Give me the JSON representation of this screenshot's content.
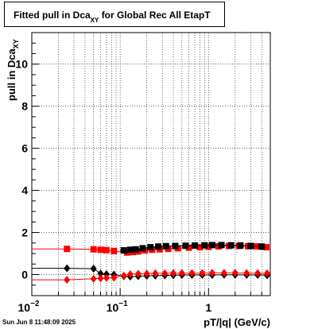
{
  "chart_data": {
    "type": "scatter",
    "title_main": "Fitted pull in Dca",
    "title_sub": "XY",
    "title_rest": "for Global Rec All EtapT",
    "xlabel": "pT/|q| (GeV/c)",
    "ylabel_main": "pull in Dca",
    "ylabel_sub": "XY",
    "x_scale": "log",
    "xlim": [
      0.01,
      5.0
    ],
    "ylim": [
      -1.0,
      11.5
    ],
    "grid": true,
    "x_tick_labels": [
      {
        "v": 0.01,
        "base": "10",
        "exp": "−2"
      },
      {
        "v": 0.1,
        "base": "10",
        "exp": "−1"
      },
      {
        "v": 1,
        "base": "1",
        "exp": ""
      }
    ],
    "y_tick_labels": [
      "0",
      "2",
      "4",
      "6",
      "8",
      "10"
    ],
    "y_ticks": [
      0,
      2,
      4,
      6,
      8,
      10
    ],
    "series": [
      {
        "marker": "square",
        "color": "#ff0000",
        "start": 0.01,
        "points": [
          [
            0.025,
            1.22
          ],
          [
            0.05,
            1.2
          ],
          [
            0.06,
            1.18
          ],
          [
            0.07,
            1.16
          ],
          [
            0.085,
            1.12
          ],
          [
            0.12,
            1.05
          ],
          [
            0.14,
            1.07
          ],
          [
            0.16,
            1.1
          ],
          [
            0.19,
            1.15
          ],
          [
            0.23,
            1.18
          ],
          [
            0.28,
            1.2
          ],
          [
            0.35,
            1.22
          ],
          [
            0.45,
            1.25
          ],
          [
            0.6,
            1.28
          ],
          [
            0.8,
            1.3
          ],
          [
            1.0,
            1.32
          ],
          [
            1.3,
            1.34
          ],
          [
            1.7,
            1.36
          ],
          [
            2.2,
            1.36
          ],
          [
            2.8,
            1.35
          ],
          [
            3.5,
            1.34
          ],
          [
            4.5,
            1.3
          ]
        ]
      },
      {
        "marker": "square",
        "color": "#000000",
        "start": 0.1,
        "points": [
          [
            0.11,
            1.15
          ],
          [
            0.13,
            1.18
          ],
          [
            0.15,
            1.2
          ],
          [
            0.18,
            1.25
          ],
          [
            0.22,
            1.3
          ],
          [
            0.27,
            1.33
          ],
          [
            0.33,
            1.35
          ],
          [
            0.42,
            1.36
          ],
          [
            0.55,
            1.37
          ],
          [
            0.7,
            1.38
          ],
          [
            0.9,
            1.39
          ],
          [
            1.1,
            1.4
          ],
          [
            1.4,
            1.4
          ],
          [
            1.8,
            1.39
          ],
          [
            2.3,
            1.38
          ],
          [
            3.0,
            1.36
          ],
          [
            4.0,
            1.33
          ]
        ]
      },
      {
        "marker": "diamond",
        "color": "#000000",
        "start": 0.01,
        "points": [
          [
            0.025,
            0.3
          ],
          [
            0.05,
            0.28
          ],
          [
            0.06,
            0.05
          ],
          [
            0.07,
            0.02
          ],
          [
            0.085,
            0.0
          ],
          [
            0.11,
            -0.08
          ],
          [
            0.13,
            -0.1
          ],
          [
            0.16,
            -0.08
          ],
          [
            0.2,
            -0.06
          ],
          [
            0.25,
            -0.05
          ],
          [
            0.32,
            -0.04
          ],
          [
            0.4,
            -0.03
          ],
          [
            0.5,
            -0.02
          ],
          [
            0.65,
            -0.02
          ],
          [
            0.85,
            -0.02
          ],
          [
            1.1,
            -0.02
          ],
          [
            1.5,
            -0.01
          ],
          [
            2.0,
            -0.01
          ],
          [
            2.7,
            -0.02
          ],
          [
            3.6,
            -0.02
          ],
          [
            4.6,
            -0.03
          ]
        ]
      },
      {
        "marker": "diamond",
        "color": "#ff0000",
        "start": 0.01,
        "points": [
          [
            0.025,
            -0.25
          ],
          [
            0.05,
            -0.2
          ],
          [
            0.06,
            -0.18
          ],
          [
            0.07,
            -0.16
          ],
          [
            0.085,
            -0.15
          ],
          [
            0.11,
            -0.05
          ],
          [
            0.13,
            0.02
          ],
          [
            0.16,
            0.04
          ],
          [
            0.2,
            0.05
          ],
          [
            0.25,
            0.06
          ],
          [
            0.32,
            0.06
          ],
          [
            0.4,
            0.07
          ],
          [
            0.5,
            0.07
          ],
          [
            0.65,
            0.07
          ],
          [
            0.85,
            0.07
          ],
          [
            1.1,
            0.08
          ],
          [
            1.5,
            0.08
          ],
          [
            2.0,
            0.08
          ],
          [
            2.7,
            0.07
          ],
          [
            3.6,
            0.07
          ],
          [
            4.6,
            0.06
          ]
        ]
      }
    ],
    "timestamp": "Sun Jun  8 11:48:09 2025"
  }
}
